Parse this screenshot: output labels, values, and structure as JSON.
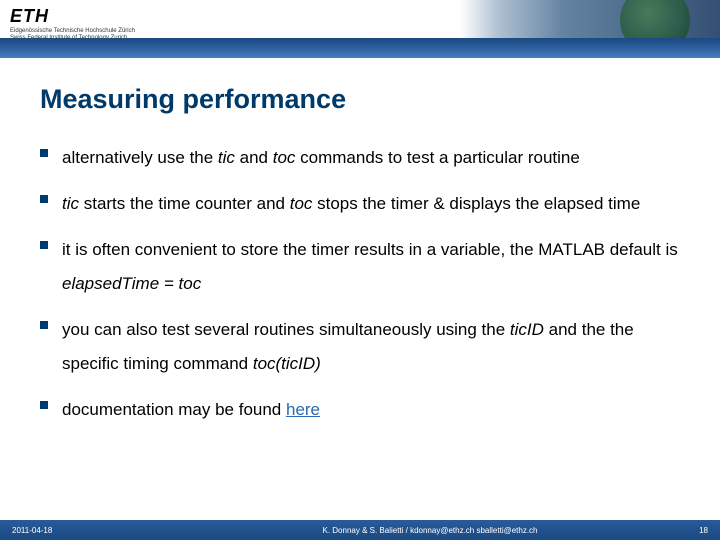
{
  "header": {
    "logo": "ETH",
    "subtitle1": "Eidgenössische Technische Hochschule Zürich",
    "subtitle2": "Swiss Federal Institute of Technology Zurich"
  },
  "title": "Measuring performance",
  "bullets": [
    {
      "segments": [
        {
          "text": "alternatively use the ",
          "italic": false
        },
        {
          "text": "tic",
          "italic": true
        },
        {
          "text": " and ",
          "italic": false
        },
        {
          "text": "toc",
          "italic": true
        },
        {
          "text": " commands to test a particular routine",
          "italic": false
        }
      ]
    },
    {
      "segments": [
        {
          "text": "tic",
          "italic": true
        },
        {
          "text": " starts the time counter and ",
          "italic": false
        },
        {
          "text": "toc",
          "italic": true
        },
        {
          "text": " stops the timer & displays the elapsed time",
          "italic": false
        }
      ]
    },
    {
      "segments": [
        {
          "text": "it is often convenient to store the timer results in a variable, the MATLAB default is ",
          "italic": false
        },
        {
          "text": "elapsedTime = toc",
          "italic": true
        }
      ]
    },
    {
      "segments": [
        {
          "text": "you can also test several routines simultaneously using the ",
          "italic": false
        },
        {
          "text": "ticID",
          "italic": true
        },
        {
          "text": " and the the specific timing command ",
          "italic": false
        },
        {
          "text": "toc(ticID)",
          "italic": true
        }
      ]
    },
    {
      "segments": [
        {
          "text": "documentation may be found ",
          "italic": false
        },
        {
          "text": "here",
          "italic": false,
          "link": true
        }
      ]
    }
  ],
  "footer": {
    "date": "2011-04-18",
    "center": "K. Donnay & S. Balietti / kdonnay@ethz.ch   sballetti@ethz.ch",
    "page": "18"
  },
  "colors": {
    "brand_dark": "#003a6a",
    "band_blue": "#2a5a9a",
    "link_blue": "#2a6ab0",
    "bg": "#ffffff"
  },
  "typography": {
    "title_fontsize": 27,
    "body_fontsize": 17,
    "footer_fontsize": 8
  }
}
